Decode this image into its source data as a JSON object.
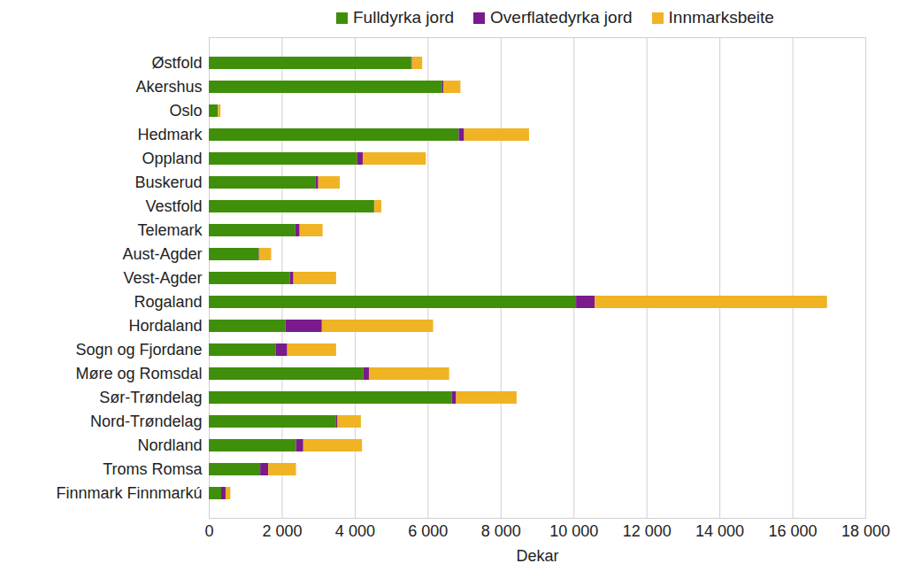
{
  "chart_data": {
    "type": "bar",
    "orientation": "horizontal",
    "stacked": true,
    "grid": true,
    "legend": "top",
    "x_label": "Dekar",
    "categories": [
      "Østfold",
      "Akershus",
      "Oslo",
      "Hedmark",
      "Oppland",
      "Buskerud",
      "Vestfold",
      "Telemark",
      "Aust-Agder",
      "Vest-Agder",
      "Rogaland",
      "Hordaland",
      "Sogn og Fjordane",
      "Møre og Romsdal",
      "Sør-Trøndelag",
      "Nord-Trøndelag",
      "Nordland",
      "Troms Romsa",
      "Finnmark Finnmarkú"
    ],
    "series": [
      {
        "name": "Fulldyrka jord",
        "color": "#3f8f0b",
        "values": [
          5550,
          6400,
          250,
          6850,
          4070,
          2930,
          4530,
          2370,
          1370,
          2220,
          10070,
          2100,
          1830,
          4240,
          6660,
          3490,
          2390,
          1410,
          340
        ]
      },
      {
        "name": "Overflatedyrka jord",
        "color": "#7a1a8c",
        "values": [
          20,
          30,
          0,
          150,
          150,
          70,
          10,
          120,
          10,
          100,
          510,
          1000,
          320,
          150,
          120,
          40,
          200,
          220,
          120
        ]
      },
      {
        "name": "Innmarksbeite",
        "color": "#f0b324",
        "values": [
          280,
          470,
          70,
          1780,
          1730,
          590,
          190,
          630,
          330,
          1170,
          6370,
          3050,
          1340,
          2200,
          1660,
          640,
          1610,
          760,
          130
        ]
      }
    ],
    "xlim": [
      0,
      18000
    ],
    "xticks": [
      0,
      {
        "value": 2000,
        "label": "2 000"
      },
      {
        "value": 4000,
        "label": "4 000"
      },
      {
        "value": 6000,
        "label": "6 000"
      },
      {
        "value": 8000,
        "label": "8 000"
      },
      {
        "value": 10000,
        "label": "10 000"
      },
      {
        "value": 12000,
        "label": "12 000"
      },
      {
        "value": 14000,
        "label": "14 000"
      },
      {
        "value": 16000,
        "label": "16 000"
      },
      {
        "value": 18000,
        "label": "18 000"
      }
    ]
  }
}
